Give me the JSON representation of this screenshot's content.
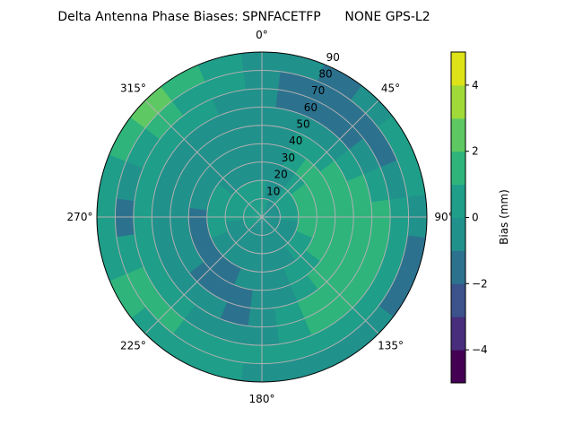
{
  "chart_data": {
    "type": "heatmap",
    "subtype": "polar-filled-contour",
    "title": "Delta Antenna Phase Biases: SPNFACETFP      NONE GPS-L2",
    "azimuth_ticks": [
      "0°",
      "45°",
      "90°",
      "135°",
      "180°",
      "225°",
      "270°",
      "315°"
    ],
    "radial_ticks": [
      "10",
      "20",
      "30",
      "40",
      "50",
      "60",
      "70",
      "80",
      "90"
    ],
    "radial_range": [
      0,
      90
    ],
    "azimuth_direction": "clockwise, 0° at top",
    "grid": true,
    "azimuth_values_deg": [
      0,
      15,
      30,
      45,
      60,
      75,
      90,
      105,
      120,
      135,
      150,
      165,
      180,
      195,
      210,
      225,
      240,
      255,
      270,
      285,
      300,
      315,
      330,
      345
    ],
    "zenith_values_deg": [
      5,
      15,
      25,
      35,
      45,
      55,
      65,
      75,
      85
    ],
    "values_mm": [
      [
        0.5,
        0.5,
        -0.5,
        -0.5,
        -0.5,
        -0.5,
        -0.5,
        -0.5,
        -0.5
      ],
      [
        0.5,
        -0.5,
        -0.5,
        -0.5,
        -0.5,
        -0.5,
        -1.5,
        -1.5,
        -0.5
      ],
      [
        -0.5,
        -0.5,
        -0.5,
        0.5,
        0.5,
        -0.5,
        -1.5,
        -1.5,
        -1.5
      ],
      [
        -0.5,
        0.5,
        0.5,
        1.5,
        0.5,
        -0.5,
        -1.5,
        -1.5,
        -0.5
      ],
      [
        -0.5,
        0.5,
        1.5,
        1.5,
        1.5,
        0.5,
        -0.5,
        -1.5,
        0.5
      ],
      [
        -0.5,
        0.5,
        1.5,
        1.5,
        1.5,
        1.5,
        0.5,
        -0.5,
        0.5
      ],
      [
        -0.5,
        0.5,
        1.5,
        1.5,
        1.5,
        1.5,
        1.5,
        0.5,
        -0.5
      ],
      [
        -0.5,
        -0.5,
        1.5,
        1.5,
        1.5,
        1.5,
        1.5,
        0.5,
        -1.5
      ],
      [
        -0.5,
        -0.5,
        0.5,
        1.5,
        1.5,
        1.5,
        1.5,
        0.5,
        -1.5
      ],
      [
        -0.5,
        -0.5,
        0.5,
        0.5,
        1.5,
        1.5,
        1.5,
        0.5,
        -0.5
      ],
      [
        -0.5,
        -0.5,
        -0.5,
        0.5,
        0.5,
        1.5,
        1.5,
        0.5,
        -0.5
      ],
      [
        -0.5,
        -0.5,
        -0.5,
        -0.5,
        -0.5,
        0.5,
        0.5,
        0.5,
        -0.5
      ],
      [
        -0.5,
        -0.5,
        -0.5,
        -0.5,
        -0.5,
        -0.5,
        -0.5,
        0.5,
        -0.5
      ],
      [
        -0.5,
        -0.5,
        -0.5,
        -0.5,
        -1.5,
        -1.5,
        -0.5,
        0.5,
        0.5
      ],
      [
        -0.5,
        -0.5,
        -0.5,
        -1.5,
        -1.5,
        -0.5,
        -0.5,
        0.5,
        0.5
      ],
      [
        -0.5,
        -0.5,
        -0.5,
        -1.5,
        -1.5,
        -0.5,
        0.5,
        1.5,
        0.5
      ],
      [
        0.5,
        -0.5,
        -0.5,
        -1.5,
        -0.5,
        -0.5,
        0.5,
        1.5,
        1.5
      ],
      [
        0.5,
        -0.5,
        0.5,
        -1.5,
        -0.5,
        -0.5,
        0.5,
        0.5,
        0.5
      ],
      [
        0.5,
        0.5,
        0.5,
        -1.5,
        -0.5,
        -0.5,
        0.5,
        -1.5,
        0.5
      ],
      [
        0.5,
        0.5,
        0.5,
        -0.5,
        -0.5,
        -0.5,
        0.5,
        -0.5,
        0.5
      ],
      [
        0.5,
        0.5,
        0.5,
        -0.5,
        -0.5,
        -0.5,
        0.5,
        0.5,
        1.5
      ],
      [
        0.5,
        0.5,
        -0.5,
        -0.5,
        -0.5,
        -0.5,
        0.5,
        1.5,
        2.5
      ],
      [
        0.5,
        0.5,
        -0.5,
        -0.5,
        -0.5,
        -0.5,
        0.5,
        0.5,
        1.5
      ],
      [
        0.5,
        0.5,
        -0.5,
        -0.5,
        -0.5,
        -0.5,
        -0.5,
        0.5,
        0.5
      ]
    ],
    "colorbar": {
      "label": "Bias (mm)",
      "levels": [
        -5,
        -4,
        -3,
        -2,
        -1,
        0,
        1,
        2,
        3,
        4,
        5
      ],
      "ticks": [
        "−4",
        "−2",
        "0",
        "2",
        "4"
      ],
      "tick_values": [
        -4,
        -2,
        0,
        2,
        4
      ],
      "colors": [
        "#440154",
        "#472d7b",
        "#3b528b",
        "#2c728e",
        "#21918c",
        "#1f9e89",
        "#2fb47c",
        "#5ec962",
        "#a0da39",
        "#dde318"
      ],
      "colormap": "viridis"
    }
  }
}
